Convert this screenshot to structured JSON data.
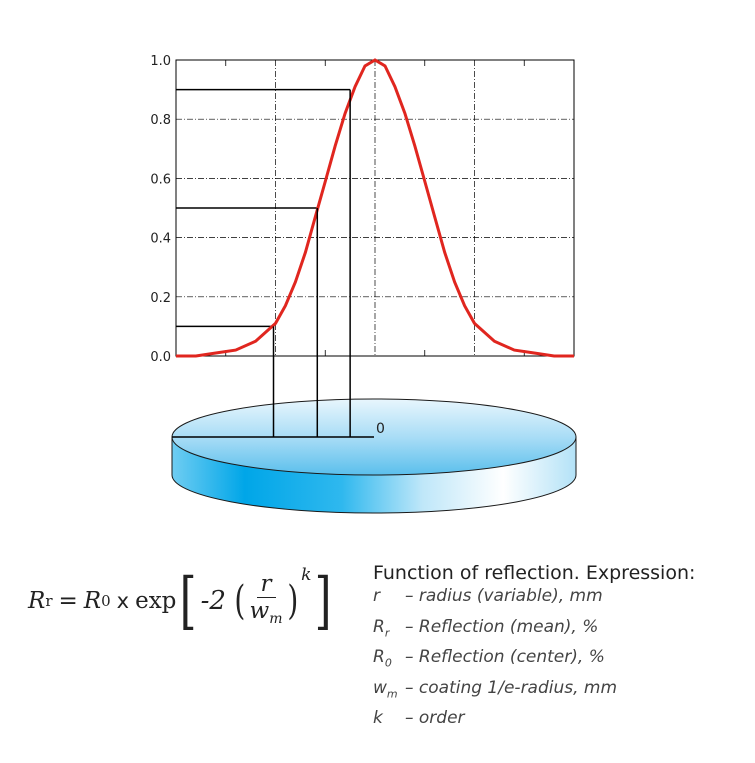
{
  "chart_data": {
    "type": "line",
    "title": "",
    "xlabel": "",
    "ylabel": "",
    "ylim": [
      0,
      1
    ],
    "yticks": [
      "0.0",
      "0.2",
      "0.4",
      "0.6",
      "0.8",
      "1.0"
    ],
    "grid": true,
    "series": [
      {
        "x": [
          -2,
          -1.8,
          -1.6,
          -1.4,
          -1.2,
          -1.0,
          -0.9,
          -0.8,
          -0.7,
          -0.6,
          -0.5,
          -0.4,
          -0.3,
          -0.2,
          -0.1,
          0,
          0.1,
          0.2,
          0.3,
          0.4,
          0.5,
          0.6,
          0.7,
          0.8,
          0.9,
          1.0,
          1.2,
          1.4,
          1.6,
          1.8,
          2
        ],
        "y": [
          0.0,
          0.0,
          0.01,
          0.02,
          0.05,
          0.11,
          0.17,
          0.25,
          0.35,
          0.47,
          0.59,
          0.71,
          0.82,
          0.91,
          0.98,
          1.0,
          0.98,
          0.91,
          0.82,
          0.71,
          0.59,
          0.47,
          0.35,
          0.25,
          0.17,
          0.11,
          0.05,
          0.02,
          0.01,
          0.0,
          0.0
        ],
        "color": "#e0261f"
      }
    ],
    "guides": [
      {
        "x": -0.25,
        "y": 0.9
      },
      {
        "x": -0.58,
        "y": 0.5
      },
      {
        "x": -1.02,
        "y": 0.1
      }
    ]
  },
  "disk": {
    "center_label": "0",
    "colors": {
      "top_light": "#e6f4fc",
      "top_dark": "#6fc6ef",
      "side_dark": "#00a9ea",
      "side_light": "#ffffff"
    }
  },
  "formula": {
    "lhs": "R",
    "lhs_sub": "r",
    "eq": "=",
    "r0": "R",
    "r0_sub": "0",
    "times": "x",
    "exp": "exp",
    "minus_two": "-2",
    "num": "r",
    "den": "w",
    "den_sub": "m",
    "power": "k"
  },
  "legend": {
    "title": "Function of reflection. Expression:",
    "rows": [
      {
        "sym": "r",
        "sub": "",
        "desc": "– radius (variable), mm"
      },
      {
        "sym": "R",
        "sub": "r",
        "desc": "– Reflection (mean), %"
      },
      {
        "sym": "R",
        "sub": "0",
        "desc": "– Reflection (center), %"
      },
      {
        "sym": "w",
        "sub": "m",
        "desc": "– coating 1/e-radius, mm"
      },
      {
        "sym": "k",
        "sub": "",
        "desc": "– order"
      }
    ]
  }
}
